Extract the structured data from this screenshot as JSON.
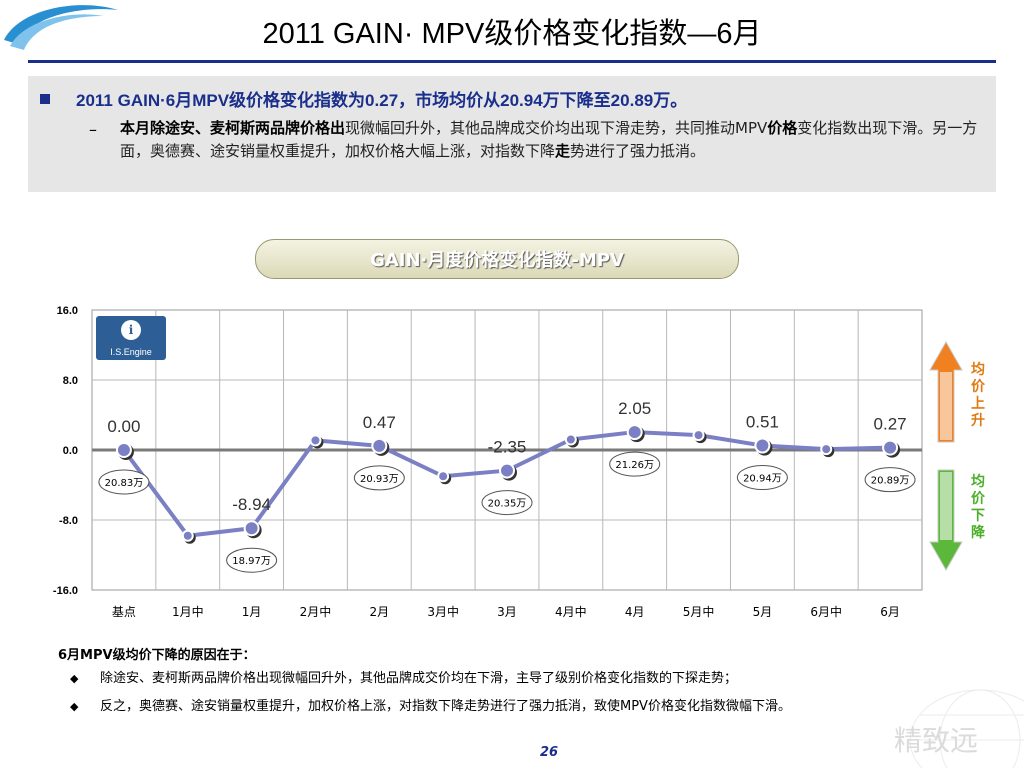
{
  "page": {
    "title": "2011 GAIN· MPV级价格变化指数—6月",
    "page_number": "26"
  },
  "summary": {
    "headline": "2011 GAIN·6月MPV级价格变化指数为0.27，市场均价从20.94万下降至20.89万。",
    "detail_bold": "本月除途安、麦柯斯两品牌价格出",
    "detail_text": "现微幅回升外，其他品牌成交价均出现下滑走势，共同推动MPV",
    "detail_bold_2": "价格",
    "detail_text_2": "变化指数出现下滑。另一方面，奥德赛、途安销量权重提升，加权价格大幅上涨，对指数下降",
    "detail_bold_3": "走",
    "detail_text_3": "势进行了强力抵消。"
  },
  "chart_title": "GAIN·月度价格变化指数-MPV",
  "legend": {
    "up_label": "均价上升",
    "down_label": "均价下降",
    "up_color": "#f08020",
    "down_color": "#5cb83a"
  },
  "logo_text": "I.S.Engine",
  "chart_data": {
    "type": "line",
    "title": "GAIN·月度价格变化指数-MPV",
    "categories": [
      "基点",
      "1月中",
      "1月",
      "2月中",
      "2月",
      "3月中",
      "3月",
      "4月中",
      "4月",
      "5月中",
      "5月",
      "6月中",
      "6月"
    ],
    "series": [
      {
        "values": [
          0.0,
          -9.8,
          -8.94,
          1.1,
          0.47,
          -3.0,
          -2.35,
          1.2,
          2.05,
          1.7,
          0.51,
          0.1,
          0.27
        ],
        "color": "#7b7fc4"
      }
    ],
    "value_labels": [
      {
        "index": 0,
        "text": "0.00"
      },
      {
        "index": 2,
        "text": "-8.94"
      },
      {
        "index": 4,
        "text": "0.47"
      },
      {
        "index": 6,
        "text": "-2.35"
      },
      {
        "index": 8,
        "text": "2.05"
      },
      {
        "index": 10,
        "text": "0.51"
      },
      {
        "index": 12,
        "text": "0.27"
      }
    ],
    "price_labels": [
      {
        "index": 0,
        "text": "20.83万",
        "side": "below"
      },
      {
        "index": 2,
        "text": "18.97万",
        "side": "below"
      },
      {
        "index": 4,
        "text": "20.93万",
        "side": "below"
      },
      {
        "index": 6,
        "text": "20.35万",
        "side": "below"
      },
      {
        "index": 8,
        "text": "21.26万",
        "side": "below"
      },
      {
        "index": 10,
        "text": "20.94万",
        "side": "below"
      },
      {
        "index": 12,
        "text": "20.89万",
        "side": "below"
      }
    ],
    "yticks": [
      "16.0",
      "8.0",
      "0.0",
      "-8.0",
      "-16.0"
    ],
    "ylim": [
      -16,
      16
    ],
    "grid": true
  },
  "reasons": {
    "heading": "6月MPV级均价下降的原因在于：",
    "items": [
      "除途安、麦柯斯两品牌价格出现微幅回升外，其他品牌成交价均在下滑，主导了级别价格变化指数的下探走势；",
      "反之，奥德赛、途安销量权重提升，加权价格上涨，对指数下降走势进行了强力抵消，致使MPV价格变化指数微幅下滑。"
    ]
  },
  "watermark_text": "精致远"
}
